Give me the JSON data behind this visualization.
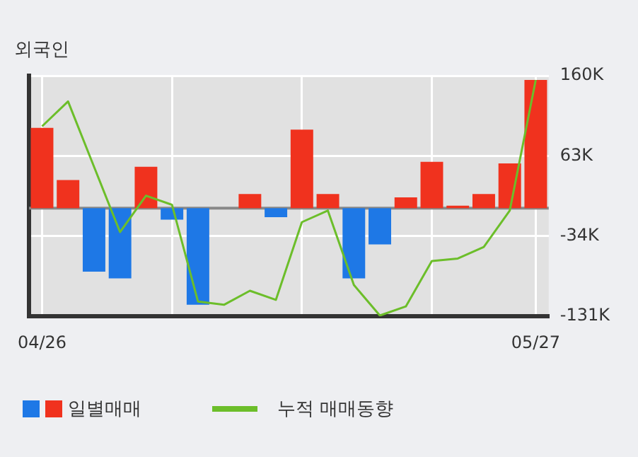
{
  "chart_data": {
    "type": "bar",
    "title": "외국인",
    "categories": [
      "04/26",
      null,
      null,
      null,
      null,
      null,
      null,
      null,
      null,
      null,
      null,
      null,
      null,
      null,
      null,
      null,
      null,
      null,
      null,
      "05/27"
    ],
    "series": [
      {
        "name": "일별매매",
        "colors": [
          "#f0321e",
          "#f0321e",
          "#1e78e6",
          "#1e78e6",
          "#f0321e",
          "#1e78e6",
          "#1e78e6",
          "#f0321e",
          "#f0321e",
          "#1e78e6",
          "#f0321e",
          "#f0321e",
          "#1e78e6",
          "#1e78e6",
          "#f0321e",
          "#f0321e",
          "#f0321e",
          "#f0321e",
          "#f0321e",
          "#f0321e"
        ],
        "values": [
          97000,
          34000,
          -77000,
          -85000,
          50000,
          -14000,
          -117000,
          0,
          17000,
          -11000,
          95000,
          17000,
          -85000,
          -44000,
          13000,
          56000,
          3000,
          17000,
          54000,
          155000
        ]
      },
      {
        "name": "누적 매매동향",
        "type": "line",
        "color": "#6cbe2a",
        "values": [
          99000,
          129000,
          50000,
          -29000,
          15000,
          4000,
          -113000,
          -117000,
          -100000,
          -111000,
          -17000,
          -3000,
          -93000,
          -130000,
          -119000,
          -64000,
          -61000,
          -47000,
          -3000,
          155000
        ]
      }
    ],
    "ylim": [
      -131000,
      160000
    ],
    "yticks": [
      {
        "value": -131000,
        "label": "-131K"
      },
      {
        "value": -34000,
        "label": "-34K"
      },
      {
        "value": 63000,
        "label": "63K"
      },
      {
        "value": 160000,
        "label": "160K"
      }
    ],
    "grid": true,
    "legend": "bottom",
    "marker": "none"
  }
}
